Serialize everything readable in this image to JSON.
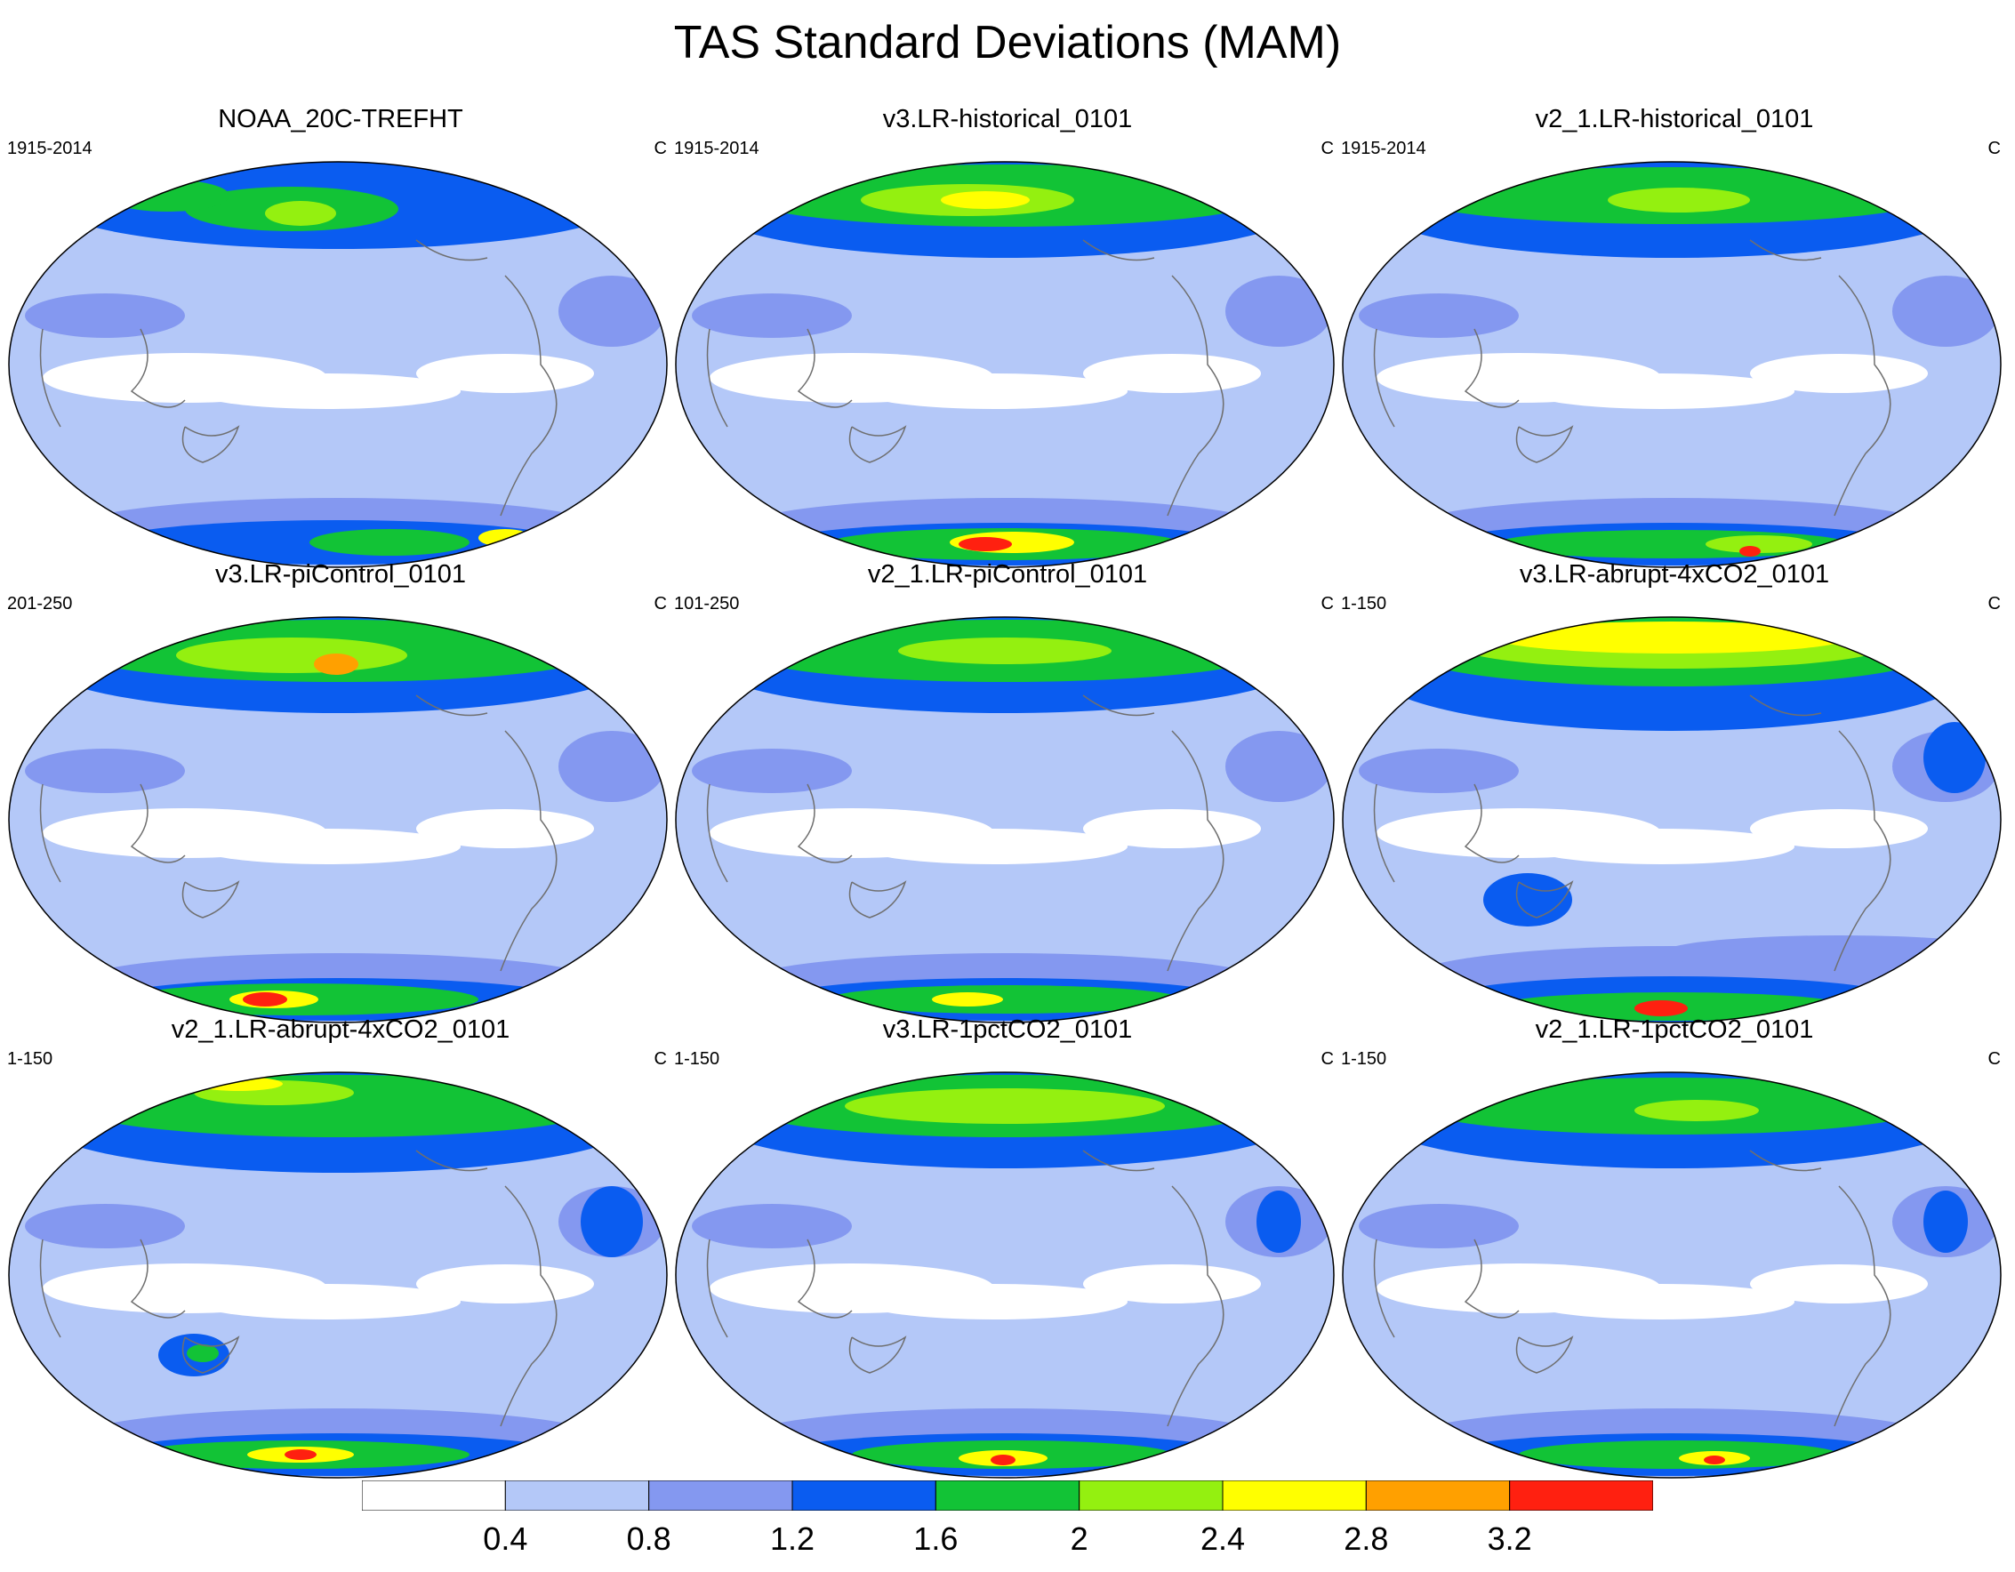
{
  "title": "TAS Standard Deviations (MAM)",
  "panels": [
    {
      "title": "NOAA_20C-TREFHT",
      "left": "1915-2014",
      "right": "C",
      "variant": "obs"
    },
    {
      "title": "v3.LR-historical_0101",
      "left": "1915-2014",
      "right": "C",
      "variant": "v3hist"
    },
    {
      "title": "v2_1.LR-historical_0101",
      "left": "1915-2014",
      "right": "C",
      "variant": "v2hist"
    },
    {
      "title": "v3.LR-piControl_0101",
      "left": "201-250",
      "right": "C",
      "variant": "v3pi"
    },
    {
      "title": "v2_1.LR-piControl_0101",
      "left": "101-250",
      "right": "C",
      "variant": "v2pi"
    },
    {
      "title": "v3.LR-abrupt-4xCO2_0101",
      "left": "1-150",
      "right": "C",
      "variant": "v3abrupt"
    },
    {
      "title": "v2_1.LR-abrupt-4xCO2_0101",
      "left": "1-150",
      "right": "C",
      "variant": "v2abrupt"
    },
    {
      "title": "v3.LR-1pctCO2_0101",
      "left": "1-150",
      "right": "C",
      "variant": "v31pct"
    },
    {
      "title": "v2_1.LR-1pctCO2_0101",
      "left": "1-150",
      "right": "C",
      "variant": "v21pct"
    }
  ],
  "colorbar": {
    "colors": [
      "#ffffff",
      "#b4c8f8",
      "#8498f0",
      "#0a5cf0",
      "#12c336",
      "#94f010",
      "#ffff00",
      "#ffa000",
      "#ff2010"
    ],
    "labels": [
      "0.4",
      "0.8",
      "1.2",
      "1.6",
      "2",
      "2.4",
      "2.8",
      "3.2"
    ]
  }
}
